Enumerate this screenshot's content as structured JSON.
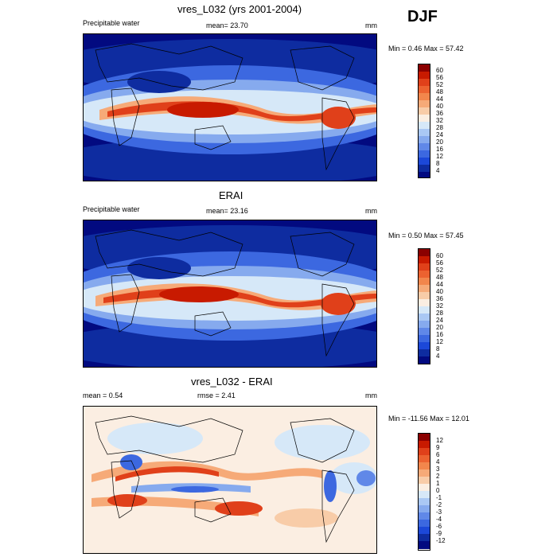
{
  "season": "DJF",
  "panels": [
    {
      "title": "vres_L032 (yrs 2001-2004)",
      "left": "Precipitable water",
      "center": "mean=  23.70",
      "right": "mm",
      "minmax": "Min =   0.46 Max =  57.42",
      "levels": [
        "60",
        "56",
        "52",
        "48",
        "44",
        "40",
        "36",
        "32",
        "28",
        "24",
        "20",
        "16",
        "12",
        "8",
        "4"
      ],
      "colors": [
        "#8b0000",
        "#c81a00",
        "#e0401a",
        "#ec6230",
        "#f2864c",
        "#f6aa78",
        "#f8cca8",
        "#fbeee2",
        "#d6e8f8",
        "#aac8f4",
        "#86aaee",
        "#6088e8",
        "#3c68e0",
        "#1c48d8",
        "#0e2ca0",
        "#020a80"
      ]
    },
    {
      "title": "ERAI",
      "left": "Precipitable water",
      "center": "mean=  23.16",
      "right": "mm",
      "minmax": "Min =   0.50 Max =  57.45",
      "levels": [
        "60",
        "56",
        "52",
        "48",
        "44",
        "40",
        "36",
        "32",
        "28",
        "24",
        "20",
        "16",
        "12",
        "8",
        "4"
      ],
      "colors": [
        "#8b0000",
        "#c81a00",
        "#e0401a",
        "#ec6230",
        "#f2864c",
        "#f6aa78",
        "#f8cca8",
        "#fbeee2",
        "#d6e8f8",
        "#aac8f4",
        "#86aaee",
        "#6088e8",
        "#3c68e0",
        "#1c48d8",
        "#0e2ca0",
        "#020a80"
      ]
    },
    {
      "title": "vres_L032 - ERAI",
      "left": "mean =   0.54",
      "center": "rmse =   2.41",
      "right": "mm",
      "minmax": "Min = -11.56 Max =  12.01",
      "levels": [
        "12",
        "9",
        "6",
        "4",
        "3",
        "2",
        "1",
        "0",
        "-1",
        "-2",
        "-3",
        "-4",
        "-6",
        "-9",
        "-12"
      ],
      "colors": [
        "#8b0000",
        "#c81a00",
        "#e0401a",
        "#ec6230",
        "#f2864c",
        "#f6aa78",
        "#f8cca8",
        "#fbeee2",
        "#d6e8f8",
        "#aac8f4",
        "#86aaee",
        "#6088e8",
        "#3c68e0",
        "#1c48d8",
        "#0e2ca0",
        "#020a80"
      ]
    }
  ]
}
